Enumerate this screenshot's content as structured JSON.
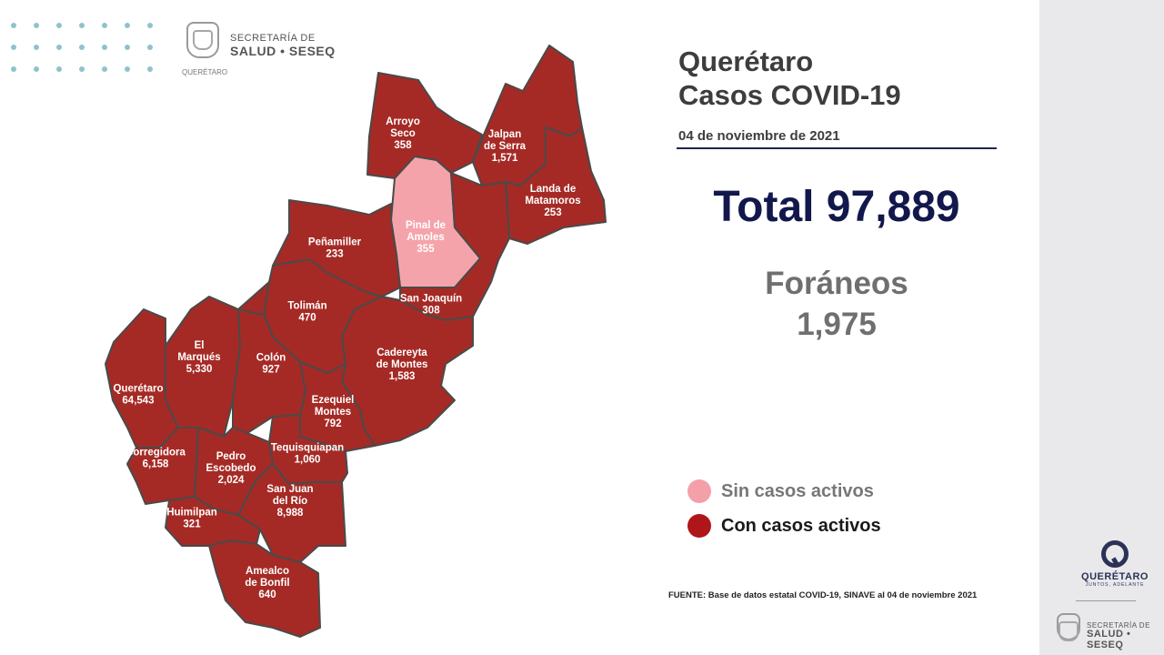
{
  "header": {
    "secretaria_line1": "SECRETARÍA DE",
    "secretaria_line2": "SALUD • SESEQ",
    "seal_caption": "QUERÉTARO"
  },
  "title_line1": "Querétaro",
  "title_line2": "Casos COVID-19",
  "date": "04 de noviembre de 2021",
  "total": "Total 97,889",
  "foraneos_label": "Foráneos",
  "foraneos_value": "1,975",
  "legend": [
    {
      "label": "Sin casos activos",
      "color": "#f4a0a8",
      "text_color": "#777777"
    },
    {
      "label": "Con casos activos",
      "color": "#b0151a",
      "text_color": "#1a1a1a"
    }
  ],
  "source": "FUENTE: Base de datos estatal  COVID-19,  SINAVE  al 04 de noviembre 2021",
  "footer_logo": {
    "name": "QUERÉTARO",
    "tagline": "JUNTOS, ADELANTE",
    "secretaria_line1": "SECRETARÍA DE",
    "secretaria_line2": "SALUD • SESEQ"
  },
  "colors": {
    "active": "#a52a25",
    "no_active": "#f5a3ab",
    "border": "#4a4a4a"
  },
  "municipalities": [
    {
      "id": "arroyo-seco",
      "lines": [
        "Arroyo",
        "Seco"
      ],
      "cases": "358",
      "status": "active"
    },
    {
      "id": "jalpan-de-serra",
      "lines": [
        "Jalpan",
        "de Serra"
      ],
      "cases": "1,571",
      "status": "active"
    },
    {
      "id": "landa-de-matamoros",
      "lines": [
        "Landa de",
        "Matamoros"
      ],
      "cases": "253",
      "status": "active"
    },
    {
      "id": "pinal-de-amoles",
      "lines": [
        "Pinal de",
        "Amoles"
      ],
      "cases": "355",
      "status": "no_active"
    },
    {
      "id": "penamiller",
      "lines": [
        "Peñamiller"
      ],
      "cases": "233",
      "status": "active"
    },
    {
      "id": "san-joaquin",
      "lines": [
        "San Joaquín"
      ],
      "cases": "308",
      "status": "active"
    },
    {
      "id": "toliman",
      "lines": [
        "Tolimán"
      ],
      "cases": "470",
      "status": "active"
    },
    {
      "id": "cadereyta-de-montes",
      "lines": [
        "Cadereyta",
        "de Montes"
      ],
      "cases": "1,583",
      "status": "active"
    },
    {
      "id": "el-marques",
      "lines": [
        "El",
        "Marqués"
      ],
      "cases": "5,330",
      "status": "active"
    },
    {
      "id": "colon",
      "lines": [
        "Colón"
      ],
      "cases": "927",
      "status": "active"
    },
    {
      "id": "queretaro",
      "lines": [
        "Querétaro"
      ],
      "cases": "64,543",
      "status": "active"
    },
    {
      "id": "ezequiel-montes",
      "lines": [
        "Ezequiel",
        "Montes"
      ],
      "cases": "792",
      "status": "active"
    },
    {
      "id": "tequisquiapan",
      "lines": [
        "Tequisquiapan"
      ],
      "cases": "1,060",
      "status": "active"
    },
    {
      "id": "corregidora",
      "lines": [
        "Corregidora"
      ],
      "cases": "6,158",
      "status": "active"
    },
    {
      "id": "pedro-escobedo",
      "lines": [
        "Pedro",
        "Escobedo"
      ],
      "cases": "2,024",
      "status": "active"
    },
    {
      "id": "san-juan-del-rio",
      "lines": [
        "San Juan",
        "del Río"
      ],
      "cases": "8,988",
      "status": "active"
    },
    {
      "id": "huimilpan",
      "lines": [
        "Huimilpan"
      ],
      "cases": "321",
      "status": "active"
    },
    {
      "id": "amealco-de-bonfil",
      "lines": [
        "Amealco",
        "de Bonfil"
      ],
      "cases": "640",
      "status": "active"
    }
  ]
}
